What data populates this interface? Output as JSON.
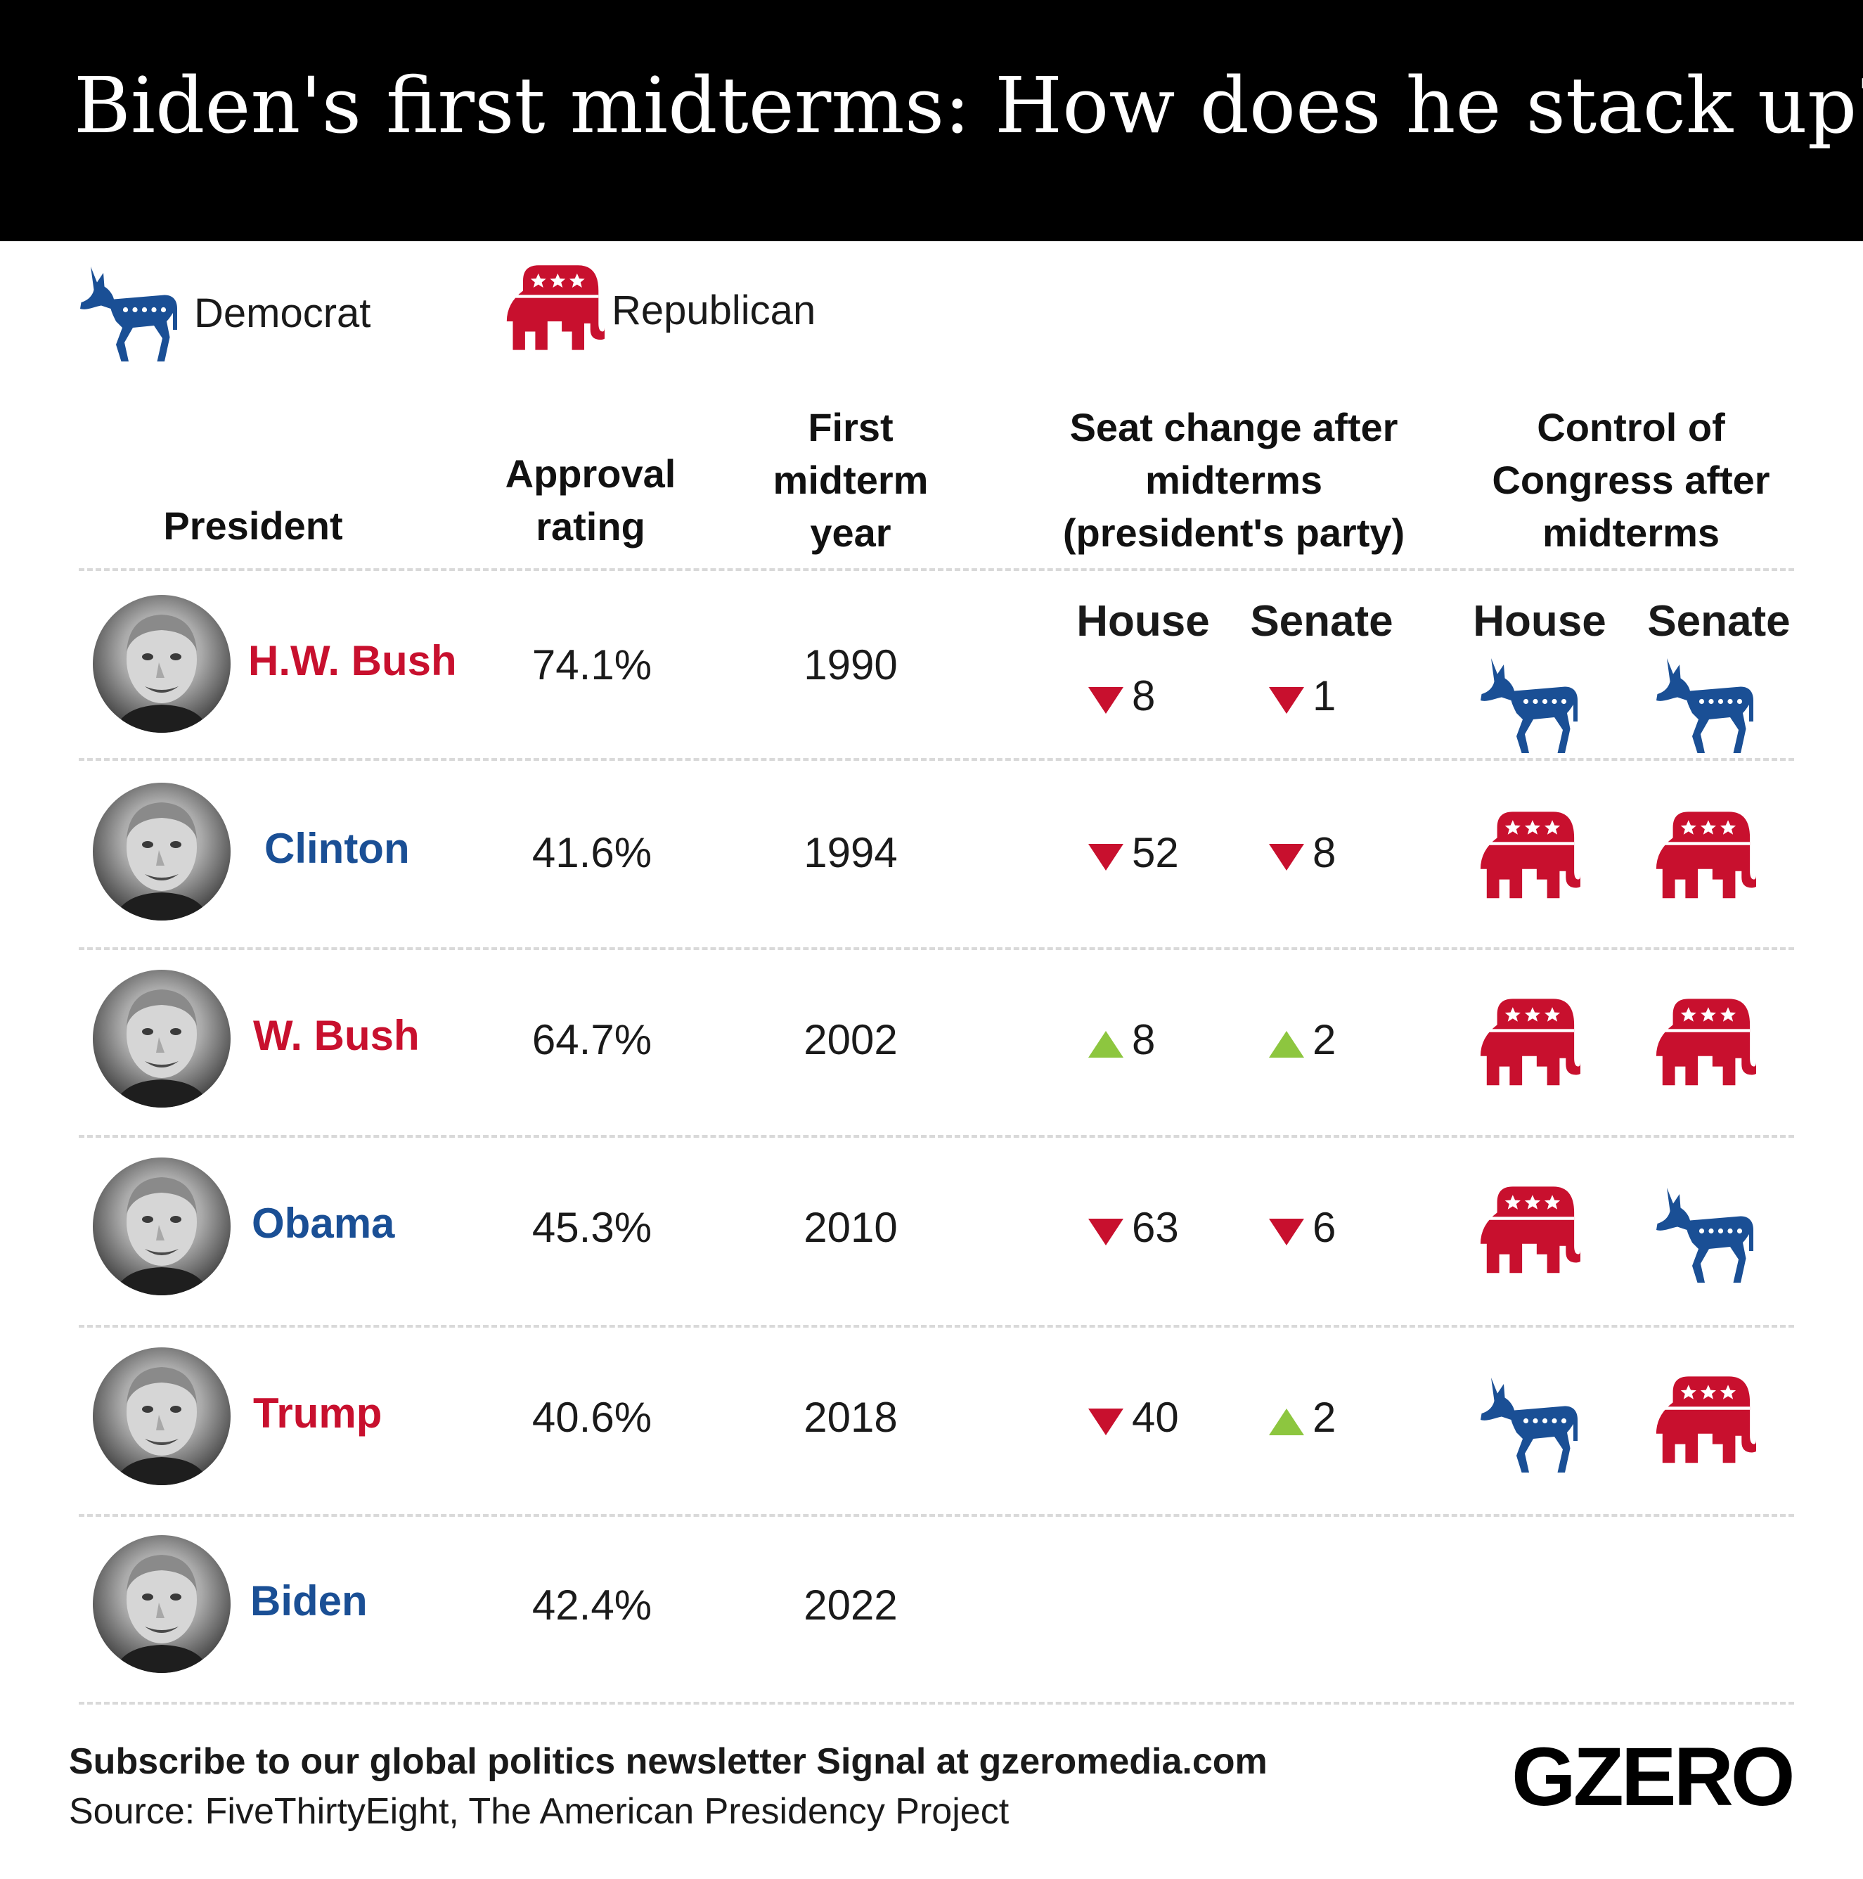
{
  "title": "Biden's first midterms: How does he stack up?",
  "legend": [
    {
      "label": "Democrat",
      "icon": "donkey-icon",
      "color": "#1a4f95"
    },
    {
      "label": "Republican",
      "icon": "elephant-icon",
      "color": "#c8102e"
    }
  ],
  "headers": {
    "president": "President",
    "approval": "Approval\nrating",
    "year": "First\nmidterm\nyear",
    "seat_change": "Seat change after\nmidterms\n(president's party)",
    "control": "Control of\nCongress after\nmidterms",
    "house": "House",
    "senate": "Senate"
  },
  "colors": {
    "democrat": "#1a4f95",
    "republican": "#c8102e",
    "gain": "#8dc63f",
    "loss": "#c8102e"
  },
  "chart_data": {
    "type": "table",
    "columns": [
      "President",
      "Approval rating",
      "First midterm year",
      "Seat change House",
      "Seat change Senate",
      "Control House",
      "Control Senate"
    ],
    "rows": [
      {
        "president": "H.W. Bush",
        "party": "republican",
        "approval": "74.1%",
        "year": "1990",
        "house_change": {
          "direction": "down",
          "value": "8"
        },
        "senate_change": {
          "direction": "down",
          "value": "1"
        },
        "house_control": "democrat",
        "senate_control": "democrat"
      },
      {
        "president": "Clinton",
        "party": "democrat",
        "approval": "41.6%",
        "year": "1994",
        "house_change": {
          "direction": "down",
          "value": "52"
        },
        "senate_change": {
          "direction": "down",
          "value": "8"
        },
        "house_control": "republican",
        "senate_control": "republican"
      },
      {
        "president": "W. Bush",
        "party": "republican",
        "approval": "64.7%",
        "year": "2002",
        "house_change": {
          "direction": "up",
          "value": "8"
        },
        "senate_change": {
          "direction": "up",
          "value": "2"
        },
        "house_control": "republican",
        "senate_control": "republican"
      },
      {
        "president": "Obama",
        "party": "democrat",
        "approval": "45.3%",
        "year": "2010",
        "house_change": {
          "direction": "down",
          "value": "63"
        },
        "senate_change": {
          "direction": "down",
          "value": "6"
        },
        "house_control": "republican",
        "senate_control": "democrat"
      },
      {
        "president": "Trump",
        "party": "republican",
        "approval": "40.6%",
        "year": "2018",
        "house_change": {
          "direction": "down",
          "value": "40"
        },
        "senate_change": {
          "direction": "up",
          "value": "2"
        },
        "house_control": "democrat",
        "senate_control": "republican"
      },
      {
        "president": "Biden",
        "party": "democrat",
        "approval": "42.4%",
        "year": "2022",
        "house_change": null,
        "senate_change": null,
        "house_control": null,
        "senate_control": null
      }
    ]
  },
  "footer": {
    "subscribe": "Subscribe to our global politics newsletter Signal at gzeromedia.com",
    "source": "Source: FiveThirtyEight, The American Presidency Project",
    "logo": "GZERO"
  }
}
